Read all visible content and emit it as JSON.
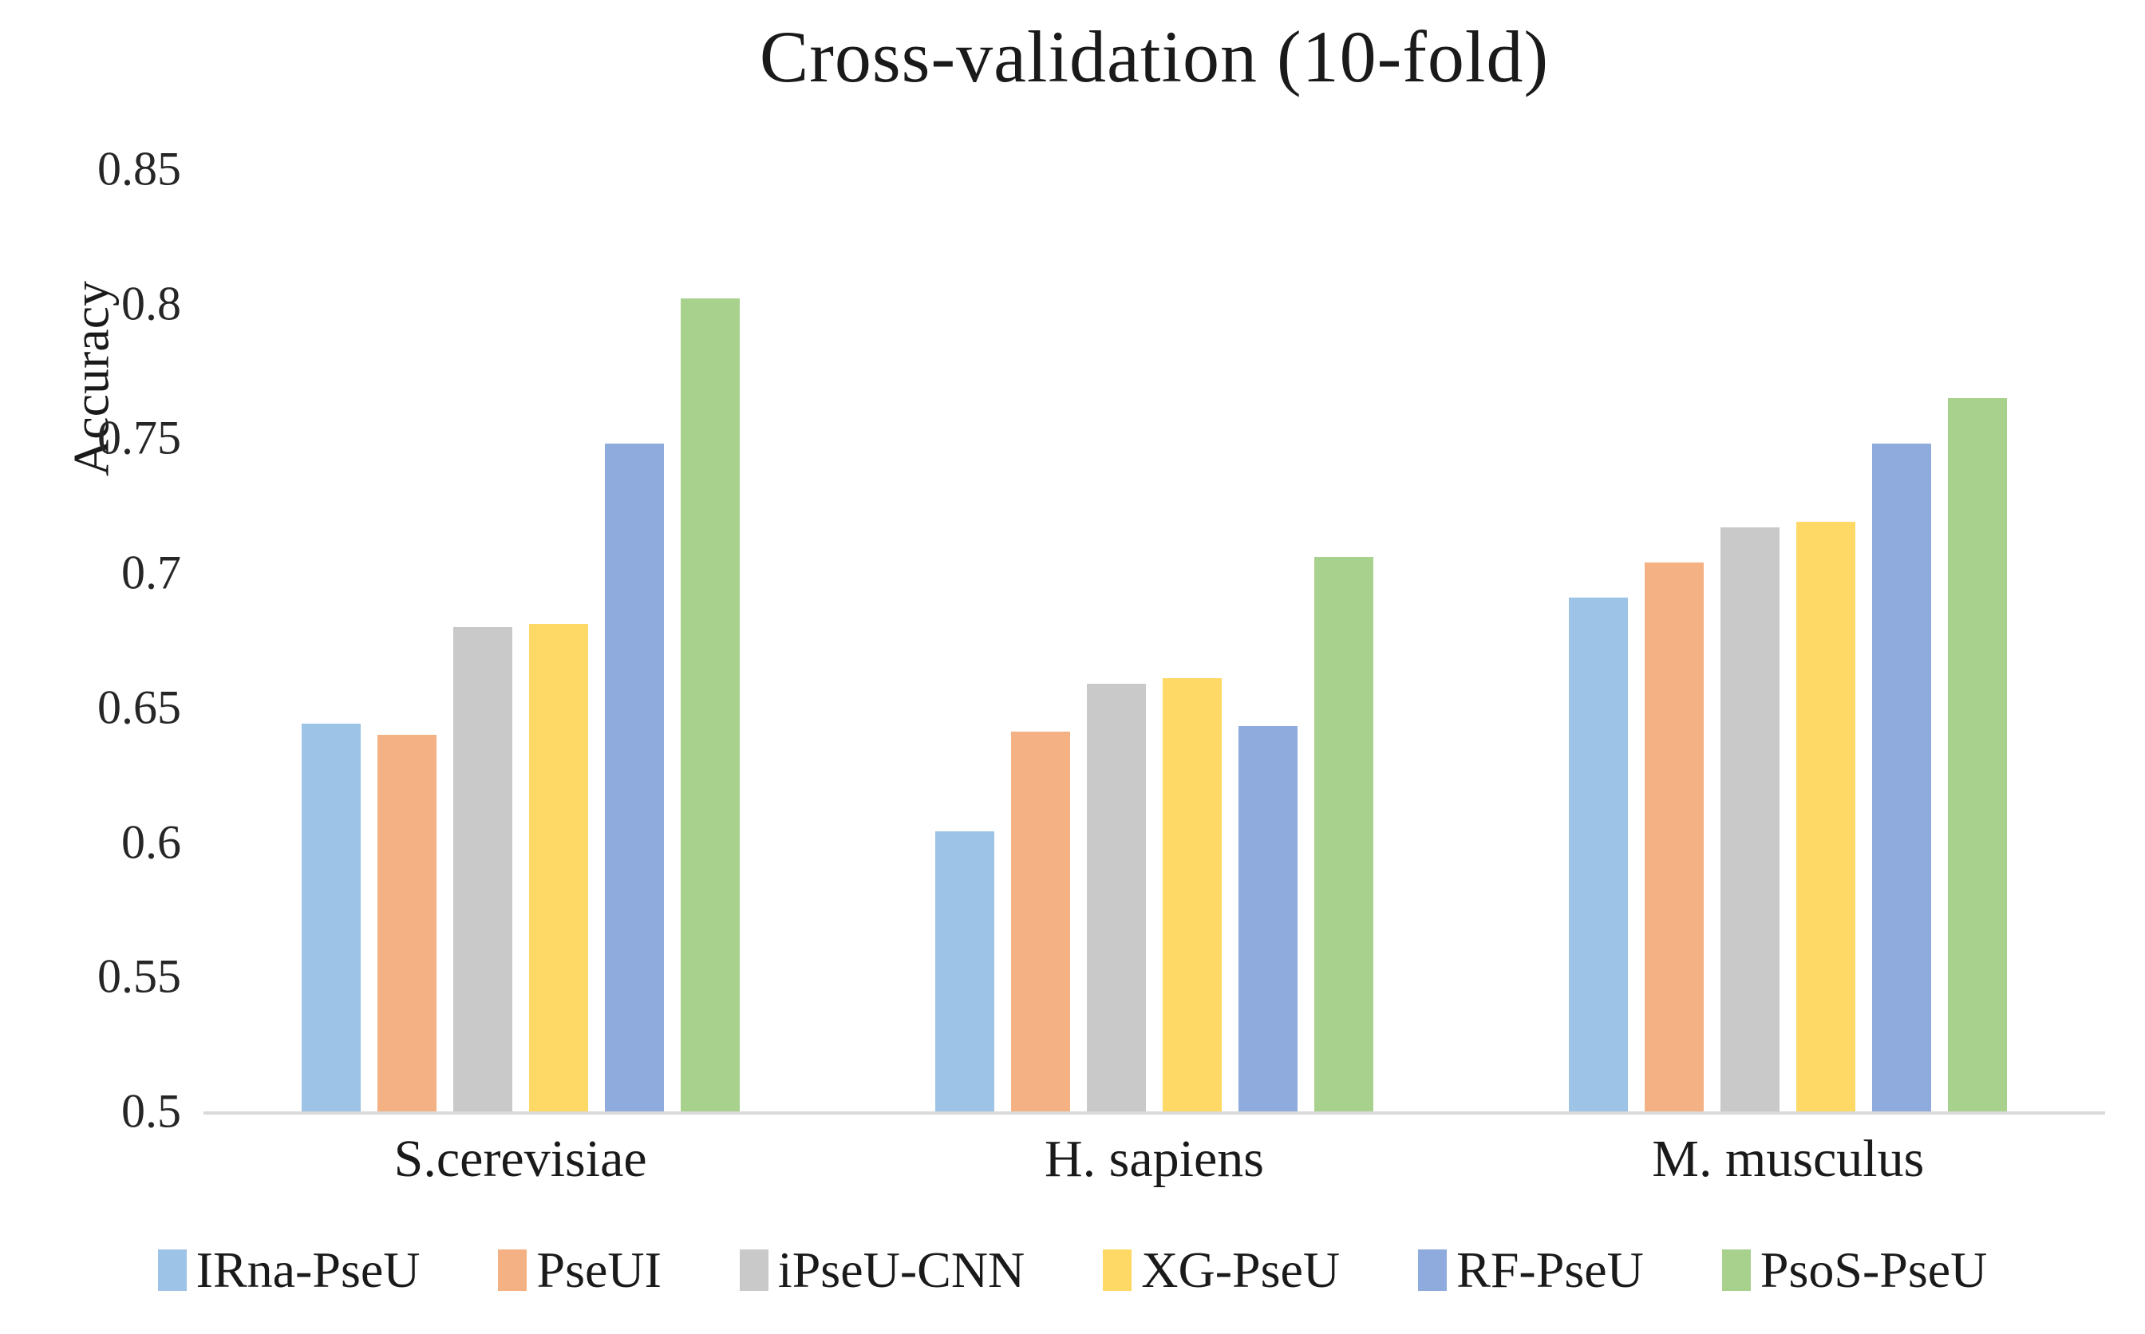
{
  "chart_data": {
    "type": "bar",
    "title": "Cross-validation (10-fold)",
    "xlabel": "",
    "ylabel": "Accuracy",
    "categories": [
      "S.cerevisiae",
      "H. sapiens",
      "M. musculus"
    ],
    "series": [
      {
        "name": "IRna-PseU",
        "color": "#9DC3E6",
        "values": [
          0.644,
          0.604,
          0.691
        ]
      },
      {
        "name": "PseUI",
        "color": "#F4B183",
        "values": [
          0.64,
          0.641,
          0.704
        ]
      },
      {
        "name": "iPseU-CNN",
        "color": "#C9C9C9",
        "values": [
          0.68,
          0.659,
          0.717
        ]
      },
      {
        "name": "XG-PseU",
        "color": "#FFD966",
        "values": [
          0.681,
          0.661,
          0.719
        ]
      },
      {
        "name": "RF-PseU",
        "color": "#8FAADC",
        "values": [
          0.748,
          0.643,
          0.748
        ]
      },
      {
        "name": "PsoS-PseU",
        "color": "#A9D18E",
        "values": [
          0.802,
          0.706,
          0.765
        ]
      }
    ],
    "ylim": [
      0.5,
      0.85
    ],
    "yticks": [
      0.5,
      0.55,
      0.6,
      0.65,
      0.7,
      0.75,
      0.8,
      0.85
    ],
    "ytick_labels": [
      "0.5",
      "0.55",
      "0.6",
      "0.65",
      "0.7",
      "0.75",
      "0.8",
      "0.85"
    ],
    "grid": false,
    "legend_position": "bottom",
    "axis_line_color": "#D9D9D9",
    "text_color": "#1A1A1A"
  }
}
